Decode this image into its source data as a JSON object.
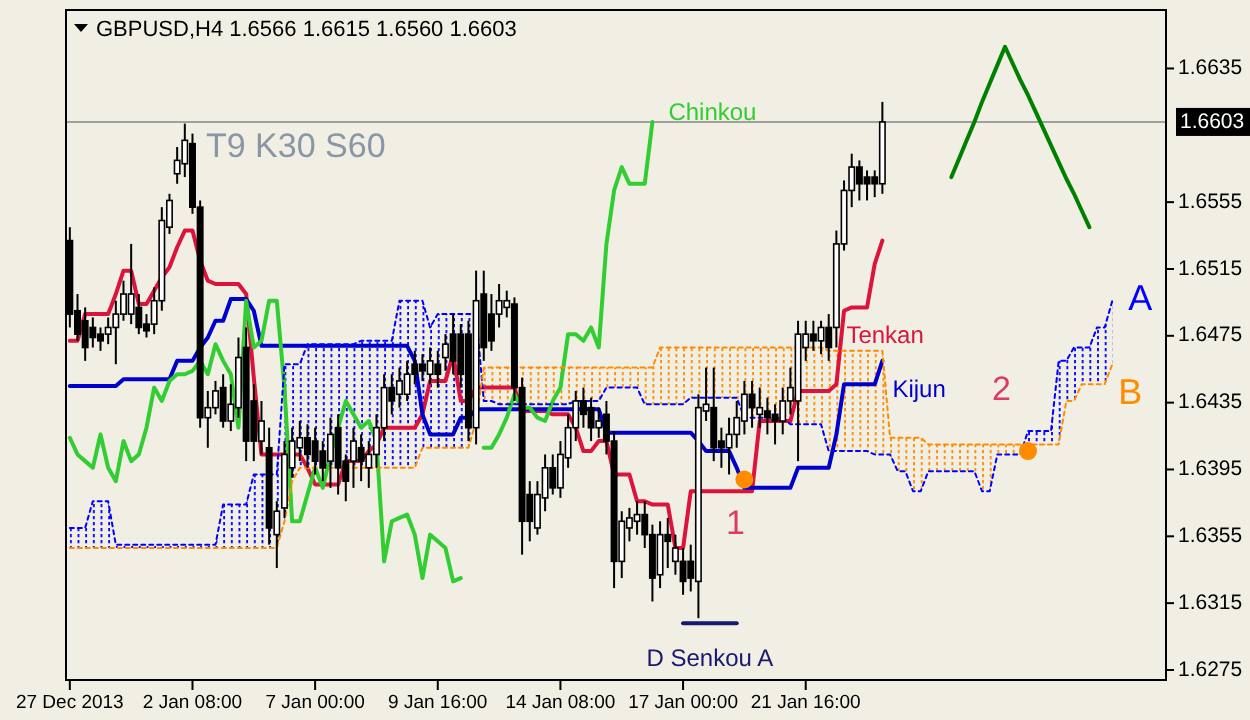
{
  "chart_data": {
    "type": "candlestick",
    "title": "GBPUSD,H4  1.6566 1.6615 1.6560 1.6603",
    "categories": [
      "27 Dec 2013",
      null,
      null,
      null,
      null,
      null,
      null,
      null,
      null,
      null,
      null,
      null,
      null,
      null,
      null,
      null,
      "2 Jan 08:00",
      null,
      null,
      null,
      null,
      null,
      null,
      null,
      null,
      null,
      null,
      null,
      null,
      null,
      null,
      null,
      "7 Jan 00:00",
      null,
      null,
      null,
      null,
      null,
      null,
      null,
      null,
      null,
      null,
      null,
      null,
      null,
      null,
      null,
      "9 Jan 16:00",
      null,
      null,
      null,
      null,
      null,
      null,
      null,
      null,
      null,
      null,
      null,
      null,
      null,
      null,
      null,
      "14 Jan 08:00",
      null,
      null,
      null,
      null,
      null,
      null,
      null,
      null,
      null,
      null,
      null,
      null,
      null,
      null,
      null,
      "17 Jan 00:00",
      null,
      null,
      null,
      null,
      null,
      null,
      null,
      null,
      null,
      null,
      null,
      null,
      null,
      null,
      null,
      "21 Jan 16:00",
      null,
      null,
      null,
      null,
      null,
      null,
      null,
      null,
      null,
      null,
      null,
      null,
      null,
      null,
      null,
      null,
      null,
      null,
      null,
      null,
      null,
      null,
      null,
      null,
      null,
      null,
      null,
      null,
      null,
      null,
      null,
      null,
      null,
      null,
      null,
      null,
      null,
      null,
      null,
      null
    ],
    "ohlc": [
      [
        1.6532,
        1.654,
        1.648,
        1.6488
      ],
      [
        1.649,
        1.65,
        1.6472,
        1.6476
      ],
      [
        1.6484,
        1.6492,
        1.646,
        1.6468
      ],
      [
        1.648,
        1.6486,
        1.6468,
        1.6474
      ],
      [
        1.6476,
        1.648,
        1.6466,
        1.6472
      ],
      [
        1.6476,
        1.6486,
        1.647,
        1.648
      ],
      [
        1.648,
        1.6496,
        1.6458,
        1.6488
      ],
      [
        1.6488,
        1.6508,
        1.6484,
        1.65
      ],
      [
        1.6488,
        1.653,
        1.6482,
        1.65
      ],
      [
        1.6492,
        1.65,
        1.6476,
        1.648
      ],
      [
        1.6482,
        1.6488,
        1.6474,
        1.6478
      ],
      [
        1.6482,
        1.6504,
        1.6476,
        1.6496
      ],
      [
        1.6496,
        1.6552,
        1.649,
        1.6544
      ],
      [
        1.654,
        1.656,
        1.6536,
        1.6556
      ],
      [
        1.6572,
        1.6588,
        1.6566,
        1.658
      ],
      [
        1.6578,
        1.6602,
        1.657,
        1.6592
      ],
      [
        1.659,
        1.6596,
        1.6548,
        1.6552
      ],
      [
        1.6552,
        1.6556,
        1.642,
        1.6426
      ],
      [
        1.6426,
        1.6442,
        1.6408,
        1.6432
      ],
      [
        1.6432,
        1.6448,
        1.6428,
        1.6442
      ],
      [
        1.6444,
        1.6452,
        1.642,
        1.6424
      ],
      [
        1.6424,
        1.6446,
        1.6418,
        1.6434
      ],
      [
        1.6432,
        1.6474,
        1.6426,
        1.6462
      ],
      [
        1.6468,
        1.648,
        1.64,
        1.6412
      ],
      [
        1.6436,
        1.6446,
        1.64,
        1.6412
      ],
      [
        1.6412,
        1.6436,
        1.6404,
        1.6424
      ],
      [
        1.6408,
        1.642,
        1.635,
        1.636
      ],
      [
        1.6356,
        1.6376,
        1.6336,
        1.637
      ],
      [
        1.6372,
        1.6412,
        1.6366,
        1.6404
      ],
      [
        1.6396,
        1.642,
        1.639,
        1.6412
      ],
      [
        1.6408,
        1.6424,
        1.64,
        1.6414
      ],
      [
        1.6414,
        1.6422,
        1.6396,
        1.6404
      ],
      [
        1.6412,
        1.642,
        1.6392,
        1.64
      ],
      [
        1.6406,
        1.6412,
        1.6388,
        1.6396
      ],
      [
        1.64,
        1.6426,
        1.6384,
        1.6416
      ],
      [
        1.642,
        1.6428,
        1.638,
        1.6396
      ],
      [
        1.64,
        1.6404,
        1.6376,
        1.6388
      ],
      [
        1.64,
        1.642,
        1.6384,
        1.6412
      ],
      [
        1.6408,
        1.6416,
        1.6388,
        1.64
      ],
      [
        1.6396,
        1.6412,
        1.6384,
        1.6404
      ],
      [
        1.6404,
        1.6428,
        1.6396,
        1.642
      ],
      [
        1.642,
        1.6452,
        1.6412,
        1.6444
      ],
      [
        1.6444,
        1.6452,
        1.6428,
        1.6436
      ],
      [
        1.644,
        1.6456,
        1.6432,
        1.6448
      ],
      [
        1.644,
        1.646,
        1.6436,
        1.6452
      ],
      [
        1.6458,
        1.6466,
        1.6446,
        1.6452
      ],
      [
        1.6458,
        1.6464,
        1.6448,
        1.6454
      ],
      [
        1.6452,
        1.6468,
        1.6446,
        1.646
      ],
      [
        1.6458,
        1.6466,
        1.6444,
        1.6452
      ],
      [
        1.6462,
        1.6476,
        1.6454,
        1.647
      ],
      [
        1.6476,
        1.6488,
        1.6452,
        1.646
      ],
      [
        1.6476,
        1.6482,
        1.6444,
        1.6452
      ],
      [
        1.6476,
        1.6484,
        1.6412,
        1.642
      ],
      [
        1.642,
        1.6514,
        1.641,
        1.6496
      ],
      [
        1.65,
        1.6514,
        1.646,
        1.6468
      ],
      [
        1.6488,
        1.65,
        1.6466,
        1.6472
      ],
      [
        1.6488,
        1.6506,
        1.648,
        1.6496
      ],
      [
        1.6492,
        1.6502,
        1.6486,
        1.6496
      ],
      [
        1.6494,
        1.6498,
        1.6436,
        1.6444
      ],
      [
        1.6444,
        1.645,
        1.6344,
        1.6364
      ],
      [
        1.638,
        1.6388,
        1.6352,
        1.6364
      ],
      [
        1.636,
        1.6388,
        1.6356,
        1.638
      ],
      [
        1.6378,
        1.6404,
        1.637,
        1.6396
      ],
      [
        1.6396,
        1.6404,
        1.638,
        1.6384
      ],
      [
        1.6384,
        1.6412,
        1.6378,
        1.6404
      ],
      [
        1.6402,
        1.6428,
        1.6396,
        1.642
      ],
      [
        1.642,
        1.6442,
        1.6412,
        1.6436
      ],
      [
        1.6436,
        1.6444,
        1.642,
        1.6428
      ],
      [
        1.6432,
        1.6438,
        1.6412,
        1.642
      ],
      [
        1.642,
        1.6432,
        1.6414,
        1.6424
      ],
      [
        1.6428,
        1.6436,
        1.6404,
        1.6412
      ],
      [
        1.6412,
        1.6418,
        1.6324,
        1.634
      ],
      [
        1.634,
        1.637,
        1.633,
        1.6364
      ],
      [
        1.636,
        1.6372,
        1.6352,
        1.6366
      ],
      [
        1.6364,
        1.6376,
        1.6356,
        1.6368
      ],
      [
        1.6368,
        1.6376,
        1.6348,
        1.6356
      ],
      [
        1.6356,
        1.6362,
        1.6316,
        1.633
      ],
      [
        1.6332,
        1.6364,
        1.6324,
        1.6356
      ],
      [
        1.6356,
        1.6366,
        1.6336,
        1.6352
      ],
      [
        1.634,
        1.6356,
        1.6332,
        1.6348
      ],
      [
        1.634,
        1.6348,
        1.632,
        1.6328
      ],
      [
        1.634,
        1.635,
        1.6322,
        1.633
      ],
      [
        1.6328,
        1.644,
        1.6306,
        1.6432
      ],
      [
        1.643,
        1.6456,
        1.6424,
        1.6434
      ],
      [
        1.6432,
        1.6456,
        1.64,
        1.6408
      ],
      [
        1.6412,
        1.642,
        1.6396,
        1.6408
      ],
      [
        1.6408,
        1.6426,
        1.6392,
        1.6416
      ],
      [
        1.6416,
        1.6436,
        1.6408,
        1.6426
      ],
      [
        1.6424,
        1.6448,
        1.6416,
        1.644
      ],
      [
        1.644,
        1.6448,
        1.642,
        1.6432
      ],
      [
        1.6428,
        1.6444,
        1.642,
        1.6432
      ],
      [
        1.643,
        1.6438,
        1.6416,
        1.6426
      ],
      [
        1.6428,
        1.6434,
        1.641,
        1.6424
      ],
      [
        1.6424,
        1.6444,
        1.6416,
        1.6436
      ],
      [
        1.6436,
        1.6456,
        1.6428,
        1.6444
      ],
      [
        1.6436,
        1.6484,
        1.64,
        1.6476
      ],
      [
        1.6468,
        1.6484,
        1.646,
        1.6476
      ],
      [
        1.6476,
        1.6484,
        1.6466,
        1.6472
      ],
      [
        1.6472,
        1.6484,
        1.6464,
        1.648
      ],
      [
        1.648,
        1.6488,
        1.646,
        1.6468
      ],
      [
        1.648,
        1.6538,
        1.6468,
        1.653
      ],
      [
        1.653,
        1.6568,
        1.6526,
        1.6562
      ],
      [
        1.6562,
        1.6584,
        1.6552,
        1.6576
      ],
      [
        1.6576,
        1.658,
        1.6556,
        1.6566
      ],
      [
        1.657,
        1.6574,
        1.6556,
        1.6566
      ],
      [
        1.657,
        1.6574,
        1.6558,
        1.6566
      ],
      [
        1.6566,
        1.6615,
        1.656,
        1.6603
      ],
      null,
      null,
      null,
      null,
      null,
      null,
      null,
      null,
      null,
      null,
      null,
      null,
      null,
      null,
      null,
      null,
      null,
      null,
      null,
      null,
      null,
      null,
      null,
      null,
      null,
      null,
      null,
      null,
      null,
      null
    ],
    "series": [
      {
        "name": "Tenkan",
        "type": "line",
        "color": "#dc143c",
        "values": [
          1.6472,
          1.6472,
          1.6488,
          1.6488,
          1.6488,
          1.6488,
          1.65,
          1.6514,
          1.6514,
          1.6494,
          1.6494,
          1.6502,
          1.651,
          1.6516,
          1.6528,
          1.6538,
          1.6538,
          1.652,
          1.6508,
          1.6506,
          1.6506,
          1.6506,
          1.6506,
          1.65,
          1.645,
          1.6404,
          1.6404,
          1.6404,
          1.6404,
          1.6404,
          1.6404,
          1.6396,
          1.6386,
          1.6386,
          1.6386,
          1.6386,
          1.64,
          1.64,
          1.64,
          1.6406,
          1.641,
          1.642,
          1.642,
          1.642,
          1.642,
          1.642,
          1.6428,
          1.6448,
          1.6448,
          1.6448,
          1.6464,
          1.6436,
          1.6436,
          1.6444,
          1.6444,
          1.6444,
          1.6444,
          1.6444,
          1.6444,
          1.643,
          1.643,
          1.643,
          1.643,
          1.6428,
          1.6428,
          1.6428,
          1.642,
          1.6406,
          1.6406,
          1.6412,
          1.6412,
          1.6392,
          1.6392,
          1.6392,
          1.6376,
          1.6376,
          1.6374,
          1.6374,
          1.6374,
          1.6348,
          1.6348,
          1.6382,
          1.6382,
          1.6382,
          1.6382,
          1.6382,
          1.6382,
          1.6382,
          1.6382,
          1.6382,
          1.6424,
          1.6424,
          1.6424,
          1.6424,
          1.6424,
          1.6442,
          1.6442,
          1.6442,
          1.6442,
          1.6442,
          1.6446,
          1.649,
          1.6492,
          1.6492,
          1.6492,
          1.6518,
          1.6532,
          null,
          null,
          null,
          null,
          null,
          null,
          null,
          null,
          null,
          null,
          null,
          null,
          null,
          null,
          null,
          null,
          null,
          null,
          null,
          null,
          null,
          null,
          null,
          null,
          null,
          null,
          null,
          null,
          null,
          null
        ]
      },
      {
        "name": "Kijun",
        "type": "line",
        "color": "#0000cd",
        "values": [
          1.6445,
          1.6445,
          1.6445,
          1.6445,
          1.6445,
          1.6445,
          1.6445,
          1.6449,
          1.6449,
          1.6449,
          1.6449,
          1.6449,
          1.6449,
          1.6449,
          1.646,
          1.646,
          1.646,
          1.6468,
          1.6474,
          1.6484,
          1.6484,
          1.6497,
          1.6497,
          1.6497,
          1.649,
          1.6469,
          1.6469,
          1.6469,
          1.6469,
          1.6469,
          1.6469,
          1.6469,
          1.6469,
          1.6469,
          1.6469,
          1.6469,
          1.6469,
          1.6469,
          1.6469,
          1.6469,
          1.6469,
          1.6469,
          1.6469,
          1.6469,
          1.6469,
          1.646,
          1.6428,
          1.6416,
          1.6416,
          1.6416,
          1.6416,
          1.6426,
          1.6426,
          1.6431,
          1.6431,
          1.6431,
          1.6431,
          1.6431,
          1.6431,
          1.6431,
          1.6431,
          1.6431,
          1.6431,
          1.6431,
          1.6431,
          1.6431,
          1.6431,
          1.6431,
          1.6431,
          1.6431,
          1.6417,
          1.6417,
          1.6417,
          1.6417,
          1.6417,
          1.6417,
          1.6417,
          1.6417,
          1.6417,
          1.6417,
          1.6417,
          1.6417,
          1.6412,
          1.6406,
          1.6406,
          1.6406,
          1.6406,
          1.6396,
          1.6384,
          1.6384,
          1.6384,
          1.6384,
          1.6384,
          1.6384,
          1.6384,
          1.6396,
          1.6396,
          1.6396,
          1.6396,
          1.6396,
          1.6416,
          1.6446,
          1.6446,
          1.6446,
          1.6446,
          1.6446,
          1.646,
          null,
          null,
          null,
          null,
          null,
          null,
          null,
          null,
          null,
          null,
          null,
          null,
          null,
          null,
          null,
          null,
          null,
          null,
          null,
          null,
          null,
          null,
          null,
          null,
          null,
          null,
          null,
          null,
          null,
          null
        ]
      },
      {
        "name": "Chinkou",
        "type": "line",
        "color": "#32cd32",
        "values": [
          1.6414,
          1.6404,
          1.64,
          1.6396,
          1.6416,
          1.6396,
          1.6388,
          1.6412,
          1.64,
          1.6404,
          1.642,
          1.6444,
          1.6436,
          1.6448,
          1.6452,
          1.6452,
          1.6454,
          1.646,
          1.6452,
          1.647,
          1.646,
          1.6452,
          1.642,
          1.6496,
          1.6468,
          1.6472,
          1.6496,
          1.6496,
          1.6444,
          1.6364,
          1.6364,
          1.638,
          1.6396,
          1.6384,
          1.6404,
          1.642,
          1.6436,
          1.6428,
          1.642,
          1.6424,
          1.6412,
          1.634,
          1.6364,
          1.6366,
          1.6368,
          1.6356,
          1.633,
          1.6356,
          1.6352,
          1.6348,
          1.6328,
          1.633,
          null,
          null,
          1.6408,
          1.6408,
          1.6416,
          1.6426,
          1.644,
          1.6432,
          1.6432,
          1.6426,
          1.6424,
          1.6436,
          1.6444,
          1.6476,
          1.6476,
          1.6472,
          1.648,
          1.6468,
          1.653,
          1.6562,
          1.6576,
          1.6566,
          1.6566,
          1.6566,
          1.6603,
          null,
          null,
          null,
          null,
          null,
          null,
          null,
          null,
          null,
          null,
          null,
          null,
          null,
          null,
          null,
          null,
          null,
          null,
          null,
          null,
          null,
          null,
          null,
          null,
          null,
          null,
          null,
          null,
          null,
          null,
          null,
          null,
          null,
          null,
          null,
          null,
          null,
          null,
          null,
          null,
          null,
          null,
          null,
          null,
          null,
          null,
          null,
          null,
          null,
          null,
          null,
          null,
          null,
          null,
          null,
          null,
          null,
          null,
          null,
          null
        ]
      },
      {
        "name": "A",
        "type": "line",
        "color": "#0000ff",
        "line_style": "dotted",
        "values": [
          1.636,
          1.636,
          1.636,
          1.6376,
          1.6376,
          1.6376,
          1.635,
          1.635,
          1.635,
          1.635,
          1.635,
          1.635,
          1.635,
          1.635,
          1.635,
          1.635,
          1.635,
          1.635,
          1.635,
          1.635,
          1.6374,
          1.6374,
          1.6374,
          1.6374,
          1.6392,
          1.6392,
          1.6392,
          1.6392,
          1.6458,
          1.6458,
          1.6458,
          1.647,
          1.647,
          1.647,
          1.647,
          1.647,
          1.647,
          1.647,
          1.6472,
          1.6472,
          1.6472,
          1.6472,
          1.6472,
          1.6496,
          1.6496,
          1.6496,
          1.6496,
          1.648,
          1.6488,
          1.6488,
          1.6488,
          1.6488,
          1.6488,
          1.6488,
          1.6436,
          1.6436,
          1.6434,
          1.6434,
          1.6434,
          1.6434,
          1.6434,
          1.6434,
          1.6434,
          1.6434,
          1.6434,
          1.6434,
          1.6436,
          1.6436,
          1.6436,
          1.6436,
          1.6444,
          1.6444,
          1.6444,
          1.6444,
          1.6444,
          1.6434,
          1.6434,
          1.6434,
          1.6434,
          1.6434,
          1.6434,
          1.6438,
          1.6438,
          1.6438,
          1.6438,
          1.6438,
          1.6438,
          1.6438,
          1.6426,
          1.6426,
          1.6426,
          1.6426,
          1.6426,
          1.6426,
          1.6422,
          1.6422,
          1.6422,
          1.6422,
          1.6422,
          1.6406,
          1.6406,
          1.6406,
          1.6406,
          1.6406,
          1.6406,
          1.6404,
          1.6404,
          1.6404,
          1.6394,
          1.6394,
          1.6382,
          1.6382,
          1.6394,
          1.6394,
          1.6394,
          1.6394,
          1.6394,
          1.6394,
          1.6394,
          1.6382,
          1.6382,
          1.6404,
          1.6404,
          1.6404,
          1.6404,
          1.6418,
          1.6418,
          1.6418,
          1.6418,
          1.646,
          1.646,
          1.6468,
          1.6468,
          1.6468,
          1.648,
          1.648,
          1.6496
        ]
      },
      {
        "name": "B",
        "type": "line",
        "color": "#ff8c00",
        "line_style": "dotted",
        "values": [
          1.6348,
          1.6348,
          1.6348,
          1.6348,
          1.6348,
          1.6348,
          1.6348,
          1.6348,
          1.6348,
          1.6348,
          1.6348,
          1.6348,
          1.6348,
          1.6348,
          1.6348,
          1.6348,
          1.6348,
          1.6348,
          1.6348,
          1.6348,
          1.6348,
          1.6348,
          1.6348,
          1.6348,
          1.6348,
          1.6348,
          1.6348,
          1.6348,
          1.6364,
          1.6388,
          1.6396,
          1.6396,
          1.6396,
          1.6396,
          1.6396,
          1.6396,
          1.6396,
          1.6396,
          1.6396,
          1.6396,
          1.6396,
          1.6396,
          1.6396,
          1.6396,
          1.6396,
          1.6396,
          1.6408,
          1.6408,
          1.6408,
          1.6408,
          1.6408,
          1.6408,
          1.6408,
          1.6424,
          1.6456,
          1.6456,
          1.6456,
          1.6456,
          1.6456,
          1.6456,
          1.6456,
          1.6456,
          1.6456,
          1.6456,
          1.6456,
          1.6456,
          1.6456,
          1.6456,
          1.6456,
          1.6456,
          1.6456,
          1.6456,
          1.6456,
          1.6456,
          1.6456,
          1.6456,
          1.6456,
          1.6468,
          1.6468,
          1.6468,
          1.6468,
          1.6468,
          1.6468,
          1.6468,
          1.6468,
          1.6468,
          1.6468,
          1.6468,
          1.6468,
          1.6468,
          1.6468,
          1.6468,
          1.6468,
          1.6468,
          1.6468,
          1.6468,
          1.6468,
          1.6468,
          1.6468,
          1.6466,
          1.6466,
          1.6466,
          1.6466,
          1.6466,
          1.6466,
          1.6466,
          1.6466,
          1.6414,
          1.6414,
          1.6414,
          1.6414,
          1.6414,
          1.641,
          1.641,
          1.641,
          1.641,
          1.641,
          1.641,
          1.641,
          1.641,
          1.641,
          1.641,
          1.641,
          1.641,
          1.641,
          1.641,
          1.641,
          1.641,
          1.641,
          1.641,
          1.6436,
          1.6436,
          1.6446,
          1.6446,
          1.6446,
          1.6446,
          1.6458
        ]
      },
      {
        "name": "D Senkou A",
        "type": "line",
        "color": "#191970",
        "values": [
          null,
          null,
          null,
          null,
          null,
          null,
          null,
          null,
          null,
          null,
          null,
          null,
          null,
          null,
          null,
          null,
          null,
          null,
          null,
          null,
          null,
          null,
          null,
          null,
          null,
          null,
          null,
          null,
          null,
          null,
          null,
          null,
          null,
          null,
          null,
          null,
          null,
          null,
          null,
          null,
          null,
          null,
          null,
          null,
          null,
          null,
          null,
          null,
          null,
          null,
          null,
          null,
          null,
          null,
          null,
          null,
          null,
          null,
          null,
          null,
          null,
          null,
          null,
          null,
          null,
          null,
          null,
          null,
          null,
          null,
          null,
          null,
          null,
          null,
          null,
          null,
          null,
          null,
          null,
          null,
          1.6303,
          1.6303,
          1.6303,
          1.6303,
          1.6303,
          1.6303,
          1.6303,
          1.6303,
          null,
          null,
          null,
          null,
          null,
          null,
          null,
          null,
          null,
          null,
          null,
          null,
          null,
          null,
          null,
          null,
          null,
          null,
          null,
          null,
          null,
          null,
          null,
          null,
          null,
          null,
          null,
          null,
          null,
          null,
          null,
          null,
          null,
          null,
          null,
          null,
          null,
          null,
          null,
          null,
          null,
          null,
          null,
          null,
          null,
          null,
          null,
          null,
          null
        ]
      },
      {
        "type": "line",
        "color": "#008000",
        "values": [
          null,
          null,
          null,
          null,
          null,
          null,
          null,
          null,
          null,
          null,
          null,
          null,
          null,
          null,
          null,
          null,
          null,
          null,
          null,
          null,
          null,
          null,
          null,
          null,
          null,
          null,
          null,
          null,
          null,
          null,
          null,
          null,
          null,
          null,
          null,
          null,
          null,
          null,
          null,
          null,
          null,
          null,
          null,
          null,
          null,
          null,
          null,
          null,
          null,
          null,
          null,
          null,
          null,
          null,
          null,
          null,
          null,
          null,
          null,
          null,
          null,
          null,
          null,
          null,
          null,
          null,
          null,
          null,
          null,
          null,
          null,
          null,
          null,
          null,
          null,
          null,
          null,
          null,
          null,
          null,
          null,
          null,
          null,
          null,
          null,
          null,
          null,
          null,
          null,
          null,
          null,
          null,
          null,
          null,
          null,
          null,
          null,
          null,
          null,
          null,
          null,
          null,
          null,
          null,
          null,
          null,
          null,
          null,
          null,
          null,
          null,
          null,
          null,
          null,
          null,
          1.657,
          1.6581,
          1.6592,
          1.6603,
          1.6615,
          1.6626,
          1.6637,
          1.6648,
          1.6638,
          1.6628,
          1.6619,
          1.6609,
          1.6599,
          1.6589,
          1.6579,
          1.6569,
          1.656,
          1.655,
          1.654,
          null,
          null,
          null
        ]
      },
      {
        "type": "scatter",
        "color": "#ff8c00",
        "marker": "circle",
        "values": [
          null,
          null,
          null,
          null,
          null,
          null,
          null,
          null,
          null,
          null,
          null,
          null,
          null,
          null,
          null,
          null,
          null,
          null,
          null,
          null,
          null,
          null,
          null,
          null,
          null,
          null,
          null,
          null,
          null,
          null,
          null,
          null,
          null,
          null,
          null,
          null,
          null,
          null,
          null,
          null,
          null,
          null,
          null,
          null,
          null,
          null,
          null,
          null,
          null,
          null,
          null,
          null,
          null,
          null,
          null,
          null,
          null,
          null,
          null,
          null,
          null,
          null,
          null,
          null,
          null,
          null,
          null,
          null,
          null,
          null,
          null,
          null,
          null,
          null,
          null,
          null,
          null,
          null,
          null,
          null,
          null,
          null,
          null,
          null,
          null,
          null,
          null,
          null,
          1.6389,
          null,
          null,
          null,
          null,
          null,
          null,
          null,
          null,
          null,
          null,
          null,
          null,
          null,
          null,
          null,
          null,
          null,
          null,
          null,
          null,
          null,
          null,
          null,
          null,
          null,
          null,
          null,
          null,
          null,
          null,
          null,
          null,
          null,
          null,
          null,
          null,
          1.6406,
          null,
          null,
          null,
          null,
          null,
          null,
          null,
          null,
          null,
          null,
          null
        ]
      }
    ],
    "ylim": [
      1.6269,
      1.667
    ],
    "yticks": [
      1.6635,
      1.6555,
      1.6515,
      1.6475,
      1.6435,
      1.6395,
      1.6355,
      1.6315,
      1.6275
    ],
    "ref_lines": [
      {
        "axis": "y",
        "value": 1.6603,
        "label": "1.6603",
        "color": "#a0a0a0"
      }
    ],
    "annotations": [
      "T9 K30 S60",
      "1",
      "2"
    ]
  }
}
